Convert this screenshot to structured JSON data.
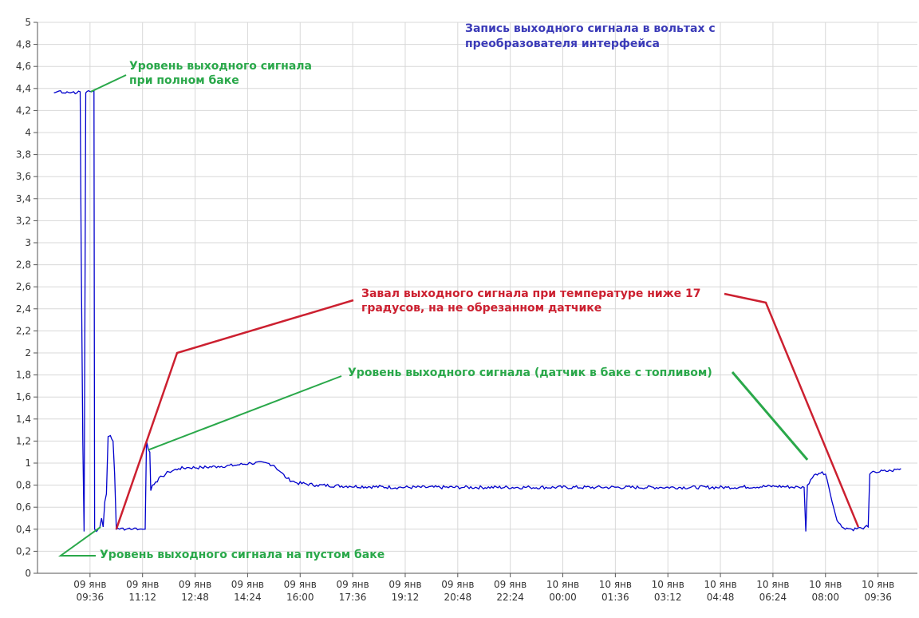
{
  "chart_data": {
    "type": "line",
    "title_lines": [
      "Запись выходного сигнала в вольтах с",
      "преобразователя интерфейса"
    ],
    "xlabel": "",
    "ylabel": "",
    "ylim": [
      0,
      5
    ],
    "yticks": [
      "0",
      "0,2",
      "0,4",
      "0,6",
      "0,8",
      "1",
      "1,2",
      "1,4",
      "1,6",
      "1,8",
      "2",
      "2,2",
      "2,4",
      "2,6",
      "2,8",
      "3",
      "3,2",
      "3,4",
      "3,6",
      "3,8",
      "4",
      "4,2",
      "4,4",
      "4,6",
      "4,8",
      "5"
    ],
    "xticks": [
      [
        "09 янв",
        "09:36"
      ],
      [
        "09 янв",
        "11:12"
      ],
      [
        "09 янв",
        "12:48"
      ],
      [
        "09 янв",
        "14:24"
      ],
      [
        "09 янв",
        "16:00"
      ],
      [
        "09 янв",
        "17:36"
      ],
      [
        "09 янв",
        "19:12"
      ],
      [
        "09 янв",
        "20:48"
      ],
      [
        "09 янв",
        "22:24"
      ],
      [
        "10 янв",
        "00:00"
      ],
      [
        "10 янв",
        "01:36"
      ],
      [
        "10 янв",
        "03:12"
      ],
      [
        "10 янв",
        "04:48"
      ],
      [
        "10 янв",
        "06:24"
      ],
      [
        "10 янв",
        "08:00"
      ],
      [
        "10 янв",
        "09:36"
      ]
    ],
    "grid": true,
    "colors": {
      "series": "#0000cc",
      "green": "#2aa84a",
      "red": "#cc2030",
      "title": "#3b3bb8",
      "grid": "#d8d8d8"
    },
    "series": [
      {
        "values": [
          [
            8.5,
            4.36
          ],
          [
            8.6,
            4.37
          ],
          [
            8.7,
            4.38
          ],
          [
            8.8,
            4.36
          ],
          [
            8.9,
            4.37
          ],
          [
            9.0,
            4.36
          ],
          [
            9.1,
            4.37
          ],
          [
            9.2,
            4.36
          ],
          [
            9.3,
            4.37
          ],
          [
            9.33,
            3.0
          ],
          [
            9.38,
            1.2
          ],
          [
            9.42,
            0.38
          ],
          [
            9.47,
            4.36
          ],
          [
            9.55,
            4.38
          ],
          [
            9.65,
            4.37
          ],
          [
            9.72,
            4.38
          ],
          [
            9.74,
            0.4
          ],
          [
            9.8,
            0.38
          ],
          [
            9.85,
            0.4
          ],
          [
            9.9,
            0.42
          ],
          [
            9.95,
            0.5
          ],
          [
            10.0,
            0.42
          ],
          [
            10.05,
            0.65
          ],
          [
            10.1,
            0.72
          ],
          [
            10.15,
            1.24
          ],
          [
            10.22,
            1.25
          ],
          [
            10.3,
            1.2
          ],
          [
            10.35,
            0.9
          ],
          [
            10.4,
            0.4
          ],
          [
            10.5,
            0.4
          ],
          [
            10.6,
            0.41
          ],
          [
            10.7,
            0.4
          ],
          [
            10.8,
            0.41
          ],
          [
            10.9,
            0.4
          ],
          [
            11.0,
            0.41
          ],
          [
            11.1,
            0.4
          ],
          [
            11.2,
            0.4
          ],
          [
            11.28,
            0.4
          ],
          [
            11.32,
            1.2
          ],
          [
            11.38,
            1.12
          ],
          [
            11.42,
            1.1
          ],
          [
            11.45,
            0.75
          ],
          [
            11.5,
            0.8
          ],
          [
            11.6,
            0.83
          ],
          [
            11.8,
            0.88
          ],
          [
            12.0,
            0.92
          ],
          [
            12.3,
            0.95
          ],
          [
            12.6,
            0.96
          ],
          [
            13.0,
            0.96
          ],
          [
            13.5,
            0.97
          ],
          [
            14.0,
            0.98
          ],
          [
            14.5,
            1.0
          ],
          [
            15.0,
            1.0
          ],
          [
            15.2,
            0.98
          ],
          [
            15.4,
            0.92
          ],
          [
            15.6,
            0.86
          ],
          [
            15.9,
            0.82
          ],
          [
            16.5,
            0.8
          ],
          [
            17.5,
            0.79
          ],
          [
            19.0,
            0.78
          ],
          [
            21.0,
            0.78
          ],
          [
            23.0,
            0.78
          ],
          [
            25.0,
            0.78
          ],
          [
            27.0,
            0.78
          ],
          [
            29.0,
            0.78
          ],
          [
            30.5,
            0.79
          ],
          [
            31.2,
            0.78
          ],
          [
            31.35,
            0.78
          ],
          [
            31.4,
            0.38
          ],
          [
            31.45,
            0.8
          ],
          [
            31.55,
            0.85
          ],
          [
            31.7,
            0.9
          ],
          [
            31.9,
            0.92
          ],
          [
            32.0,
            0.9
          ],
          [
            32.05,
            0.85
          ],
          [
            32.2,
            0.65
          ],
          [
            32.35,
            0.48
          ],
          [
            32.5,
            0.42
          ],
          [
            32.8,
            0.4
          ],
          [
            33.1,
            0.41
          ],
          [
            33.2,
            0.42
          ],
          [
            33.3,
            0.42
          ],
          [
            33.35,
            0.9
          ],
          [
            33.5,
            0.92
          ],
          [
            34.0,
            0.93
          ],
          [
            34.3,
            0.95
          ]
        ]
      }
    ],
    "annotations": [
      {
        "lines": [
          "Уровень выходного сигнала",
          "при полном баке"
        ],
        "color": "green"
      },
      {
        "lines": [
          "Завал выходного сигнала при температуре ниже 17",
          "градусов, на не обрезанном датчике"
        ],
        "color": "red"
      },
      {
        "lines": [
          "Уровень выходного сигнала (датчик в баке с топливом)"
        ],
        "color": "green"
      },
      {
        "lines": [
          "Уровень выходного сигнала на пустом баке"
        ],
        "color": "green"
      }
    ]
  }
}
